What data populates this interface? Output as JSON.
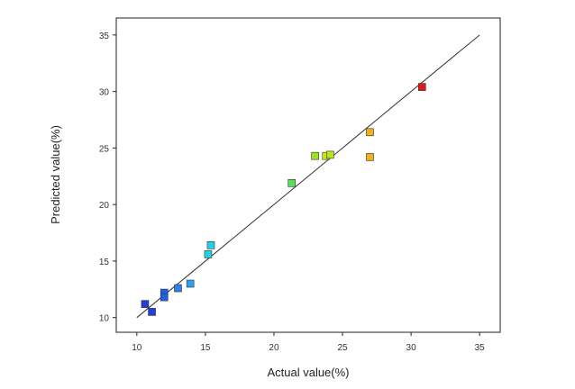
{
  "chart_data": {
    "type": "scatter",
    "title": "",
    "xlabel": "Actual value(%)",
    "ylabel": "Predicted value(%)",
    "xlim": [
      8.5,
      36.5
    ],
    "ylim": [
      8.7,
      36.5
    ],
    "xticks": [
      10,
      15,
      20,
      25,
      30,
      35
    ],
    "yticks": [
      10,
      15,
      20,
      25,
      30,
      35
    ],
    "grid": false,
    "reference_line": {
      "from": [
        10,
        10
      ],
      "to": [
        35,
        35
      ],
      "color": "#333333"
    },
    "points": [
      {
        "x": 10.6,
        "y": 11.2,
        "color": "#1f3fd8"
      },
      {
        "x": 11.1,
        "y": 10.5,
        "color": "#1f3fd8"
      },
      {
        "x": 12.0,
        "y": 12.2,
        "color": "#1f5fe0"
      },
      {
        "x": 12.0,
        "y": 11.8,
        "color": "#1f5fe0"
      },
      {
        "x": 13.0,
        "y": 12.6,
        "color": "#2f7fe8"
      },
      {
        "x": 13.9,
        "y": 13.0,
        "color": "#2f9ff0"
      },
      {
        "x": 15.2,
        "y": 15.6,
        "color": "#21d2e6"
      },
      {
        "x": 15.4,
        "y": 16.4,
        "color": "#21d2e6"
      },
      {
        "x": 21.3,
        "y": 21.9,
        "color": "#59e05a"
      },
      {
        "x": 23.0,
        "y": 24.3,
        "color": "#9ee21c"
      },
      {
        "x": 23.8,
        "y": 24.3,
        "color": "#c8ea12"
      },
      {
        "x": 24.1,
        "y": 24.4,
        "color": "#b8e617"
      },
      {
        "x": 27.0,
        "y": 26.4,
        "color": "#f0b21b"
      },
      {
        "x": 27.0,
        "y": 24.2,
        "color": "#f0b21b"
      },
      {
        "x": 30.8,
        "y": 30.4,
        "color": "#e01919"
      }
    ]
  }
}
